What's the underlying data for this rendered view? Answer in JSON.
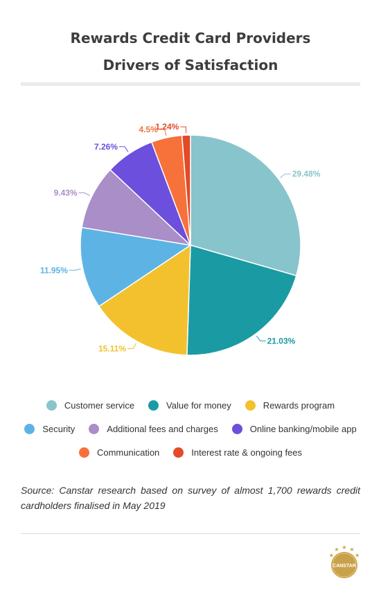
{
  "header": {
    "title_line1": "Rewards Credit Card Providers",
    "title_line2": "Drivers of Satisfaction"
  },
  "chart_data": {
    "type": "pie",
    "title": "Rewards Credit Card Providers Drivers of Satisfaction",
    "labels": [
      "Customer service",
      "Value for money",
      "Rewards program",
      "Security",
      "Additional fees and charges",
      "Online banking/mobile app",
      "Communication",
      "Interest rate & ongoing fees"
    ],
    "values": [
      29.48,
      21.03,
      15.11,
      11.95,
      9.43,
      7.26,
      4.5,
      1.24
    ],
    "data_labels": [
      "29.48%",
      "21.03%",
      "15.11%",
      "11.95%",
      "9.43%",
      "7.26%",
      "4.5%",
      "1.24%"
    ],
    "colors": [
      "#88c4cb",
      "#1a9ba3",
      "#f3c12e",
      "#5db4e4",
      "#a98ec8",
      "#6c4fdc",
      "#f7713a",
      "#e24a28"
    ],
    "legend_position": "bottom"
  },
  "source_text": "Source: Canstar research based on survey of almost 1,700 rewards credit cardholders finalised in May 2019",
  "logo": {
    "text": "CANSTAR",
    "color": "#c9a14a"
  }
}
